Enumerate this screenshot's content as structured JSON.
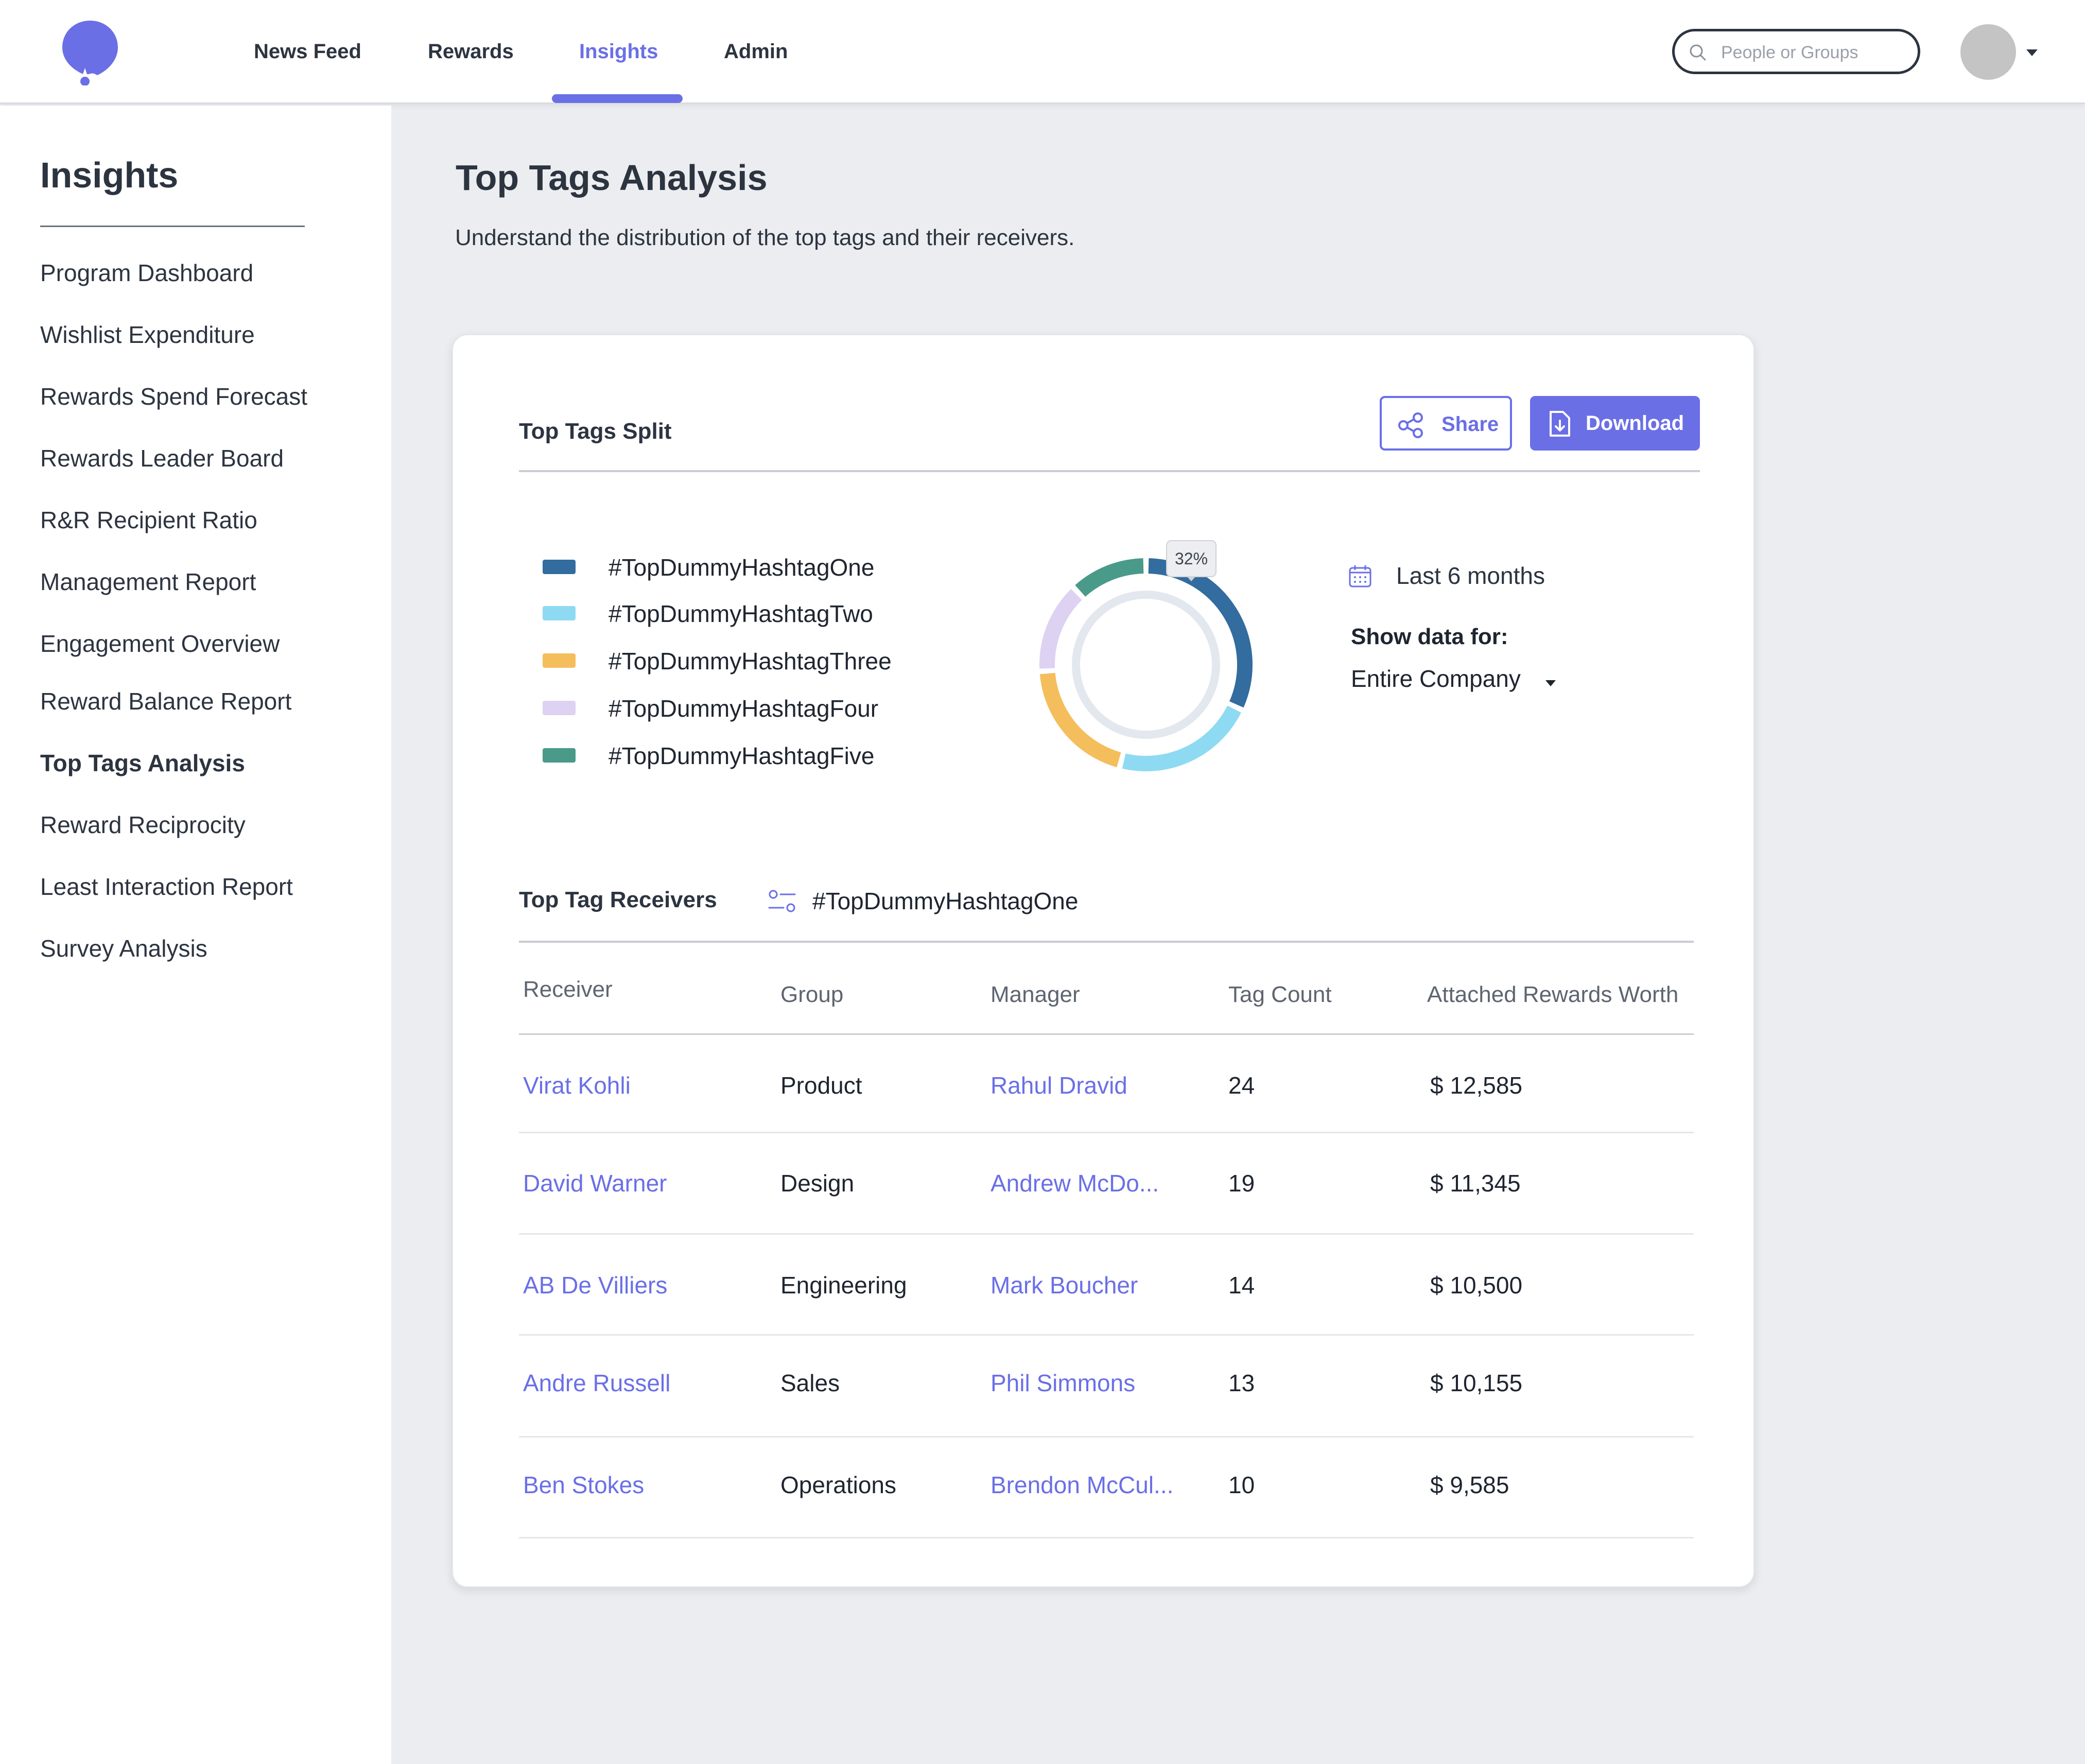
{
  "nav": {
    "items": [
      {
        "label": "News Feed",
        "active": false
      },
      {
        "label": "Rewards",
        "active": false
      },
      {
        "label": "Insights",
        "active": true
      },
      {
        "label": "Admin",
        "active": false
      }
    ],
    "search_placeholder": "People or Groups",
    "logo_icon": "balloon-star-logo",
    "accent_color": "#6a6fe6"
  },
  "sidebar": {
    "title": "Insights",
    "items": [
      {
        "label": "Program Dashboard",
        "active": false
      },
      {
        "label": "Wishlist Expenditure",
        "active": false
      },
      {
        "label": "Rewards Spend Forecast",
        "active": false
      },
      {
        "label": "Rewards Leader Board",
        "active": false
      },
      {
        "label": "R&R Recipient Ratio",
        "active": false
      },
      {
        "label": "Management Report",
        "active": false
      },
      {
        "label": "Engagement Overview",
        "active": false
      },
      {
        "label": "Reward Balance Report",
        "active": false
      },
      {
        "label": "Top Tags Analysis",
        "active": true
      },
      {
        "label": "Reward Reciprocity",
        "active": false
      },
      {
        "label": "Least Interaction Report",
        "active": false
      },
      {
        "label": "Survey Analysis",
        "active": false
      }
    ]
  },
  "page": {
    "title": "Top Tags Analysis",
    "subtitle": "Understand the distribution of the top tags and their receivers."
  },
  "split": {
    "title": "Top Tags Split",
    "share_label": "Share",
    "download_label": "Download",
    "tooltip": "32%",
    "legend": [
      {
        "label": "#TopDummyHashtagOne",
        "color": "#336c9e"
      },
      {
        "label": "#TopDummyHashtagTwo",
        "color": "#8edaf2"
      },
      {
        "label": "#TopDummyHashtagThree",
        "color": "#f4be5c"
      },
      {
        "label": "#TopDummyHashtagFour",
        "color": "#ddd2f2"
      },
      {
        "label": "#TopDummyHashtagFive",
        "color": "#4a9a8a"
      }
    ],
    "period_label": "Last 6 months",
    "show_data_label": "Show data for:",
    "scope_value": "Entire Company"
  },
  "chart_data": {
    "type": "pie",
    "categories": [
      "#TopDummyHashtagOne",
      "#TopDummyHashtagTwo",
      "#TopDummyHashtagThree",
      "#TopDummyHashtagFour",
      "#TopDummyHashtagFive"
    ],
    "values": [
      32,
      22,
      20,
      14,
      12
    ],
    "colors": [
      "#336c9e",
      "#8edaf2",
      "#f4be5c",
      "#ddd2f2",
      "#4a9a8a"
    ],
    "annotations": [
      "32%"
    ]
  },
  "receivers": {
    "title": "Top Tag Receivers",
    "filter_tag": "#TopDummyHashtagOne",
    "columns": [
      "Receiver",
      "Group",
      "Manager",
      "Tag Count",
      "Attached Rewards Worth"
    ],
    "rows": [
      {
        "receiver": "Virat Kohli",
        "group": "Product",
        "manager": "Rahul Dravid",
        "count": "24",
        "worth": "$ 12,585"
      },
      {
        "receiver": "David Warner",
        "group": "Design",
        "manager": "Andrew McDo...",
        "count": "19",
        "worth": "$ 11,345"
      },
      {
        "receiver": "AB De Villiers",
        "group": "Engineering",
        "manager": "Mark Boucher",
        "count": "14",
        "worth": "$ 10,500"
      },
      {
        "receiver": "Andre Russell",
        "group": "Sales",
        "manager": "Phil Simmons",
        "count": "13",
        "worth": "$ 10,155"
      },
      {
        "receiver": "Ben Stokes",
        "group": "Operations",
        "manager": "Brendon McCul...",
        "count": "10",
        "worth": "$ 9,585"
      }
    ]
  }
}
